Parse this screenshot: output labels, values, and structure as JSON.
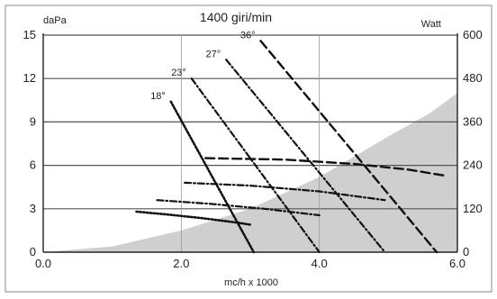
{
  "chart_data": {
    "type": "line",
    "title": "1400 giri/min",
    "xlabel": "mc/h x 1000",
    "ylabel_left": "daPa",
    "ylabel_right": "Watt",
    "xlim": [
      0.0,
      6.0
    ],
    "ylim_left": [
      0,
      15
    ],
    "ylim_right": [
      0,
      600
    ],
    "x_ticks": [
      "0.0",
      "2.0",
      "4.0",
      "6.0"
    ],
    "y_ticks_left": [
      "0",
      "3",
      "6",
      "9",
      "12",
      "15"
    ],
    "y_ticks_right": [
      "0",
      "120",
      "240",
      "360",
      "480",
      "600"
    ],
    "grid": true,
    "shaded_area": {
      "description_value": "system curve",
      "points": [
        [
          0.0,
          0.0
        ],
        [
          1.0,
          0.4
        ],
        [
          2.0,
          1.5
        ],
        [
          3.0,
          3.0
        ],
        [
          4.0,
          5.2
        ],
        [
          5.0,
          8.0
        ],
        [
          5.6,
          9.6
        ],
        [
          6.0,
          11.0
        ]
      ]
    },
    "pressure_series": [
      {
        "name": "18°",
        "dash": "dot",
        "points": [
          [
            1.85,
            10.4
          ],
          [
            3.05,
            0.0
          ]
        ]
      },
      {
        "name": "23°",
        "dash": "dashdot",
        "points": [
          [
            2.15,
            12.0
          ],
          [
            4.0,
            0.0
          ]
        ]
      },
      {
        "name": "27°",
        "dash": "dashdot",
        "points": [
          [
            2.65,
            13.3
          ],
          [
            4.95,
            0.0
          ]
        ]
      },
      {
        "name": "36°",
        "dash": "dash",
        "points": [
          [
            3.15,
            14.6
          ],
          [
            5.7,
            0.0
          ]
        ]
      }
    ],
    "power_series": [
      {
        "name": "18°",
        "dash": "dot",
        "points": [
          [
            1.35,
            2.8
          ],
          [
            1.8,
            2.6
          ],
          [
            2.3,
            2.35
          ],
          [
            2.8,
            2.05
          ],
          [
            3.0,
            1.9
          ]
        ]
      },
      {
        "name": "23°",
        "dash": "dashdot",
        "points": [
          [
            1.65,
            3.6
          ],
          [
            2.4,
            3.35
          ],
          [
            3.2,
            3.0
          ],
          [
            4.0,
            2.55
          ]
        ]
      },
      {
        "name": "27°",
        "dash": "dashdot",
        "points": [
          [
            2.05,
            4.8
          ],
          [
            3.0,
            4.6
          ],
          [
            4.0,
            4.2
          ],
          [
            4.95,
            3.6
          ]
        ]
      },
      {
        "name": "36°",
        "dash": "dash",
        "points": [
          [
            2.35,
            6.5
          ],
          [
            3.5,
            6.4
          ],
          [
            4.5,
            6.1
          ],
          [
            5.3,
            5.7
          ],
          [
            5.8,
            5.3
          ]
        ]
      }
    ]
  }
}
